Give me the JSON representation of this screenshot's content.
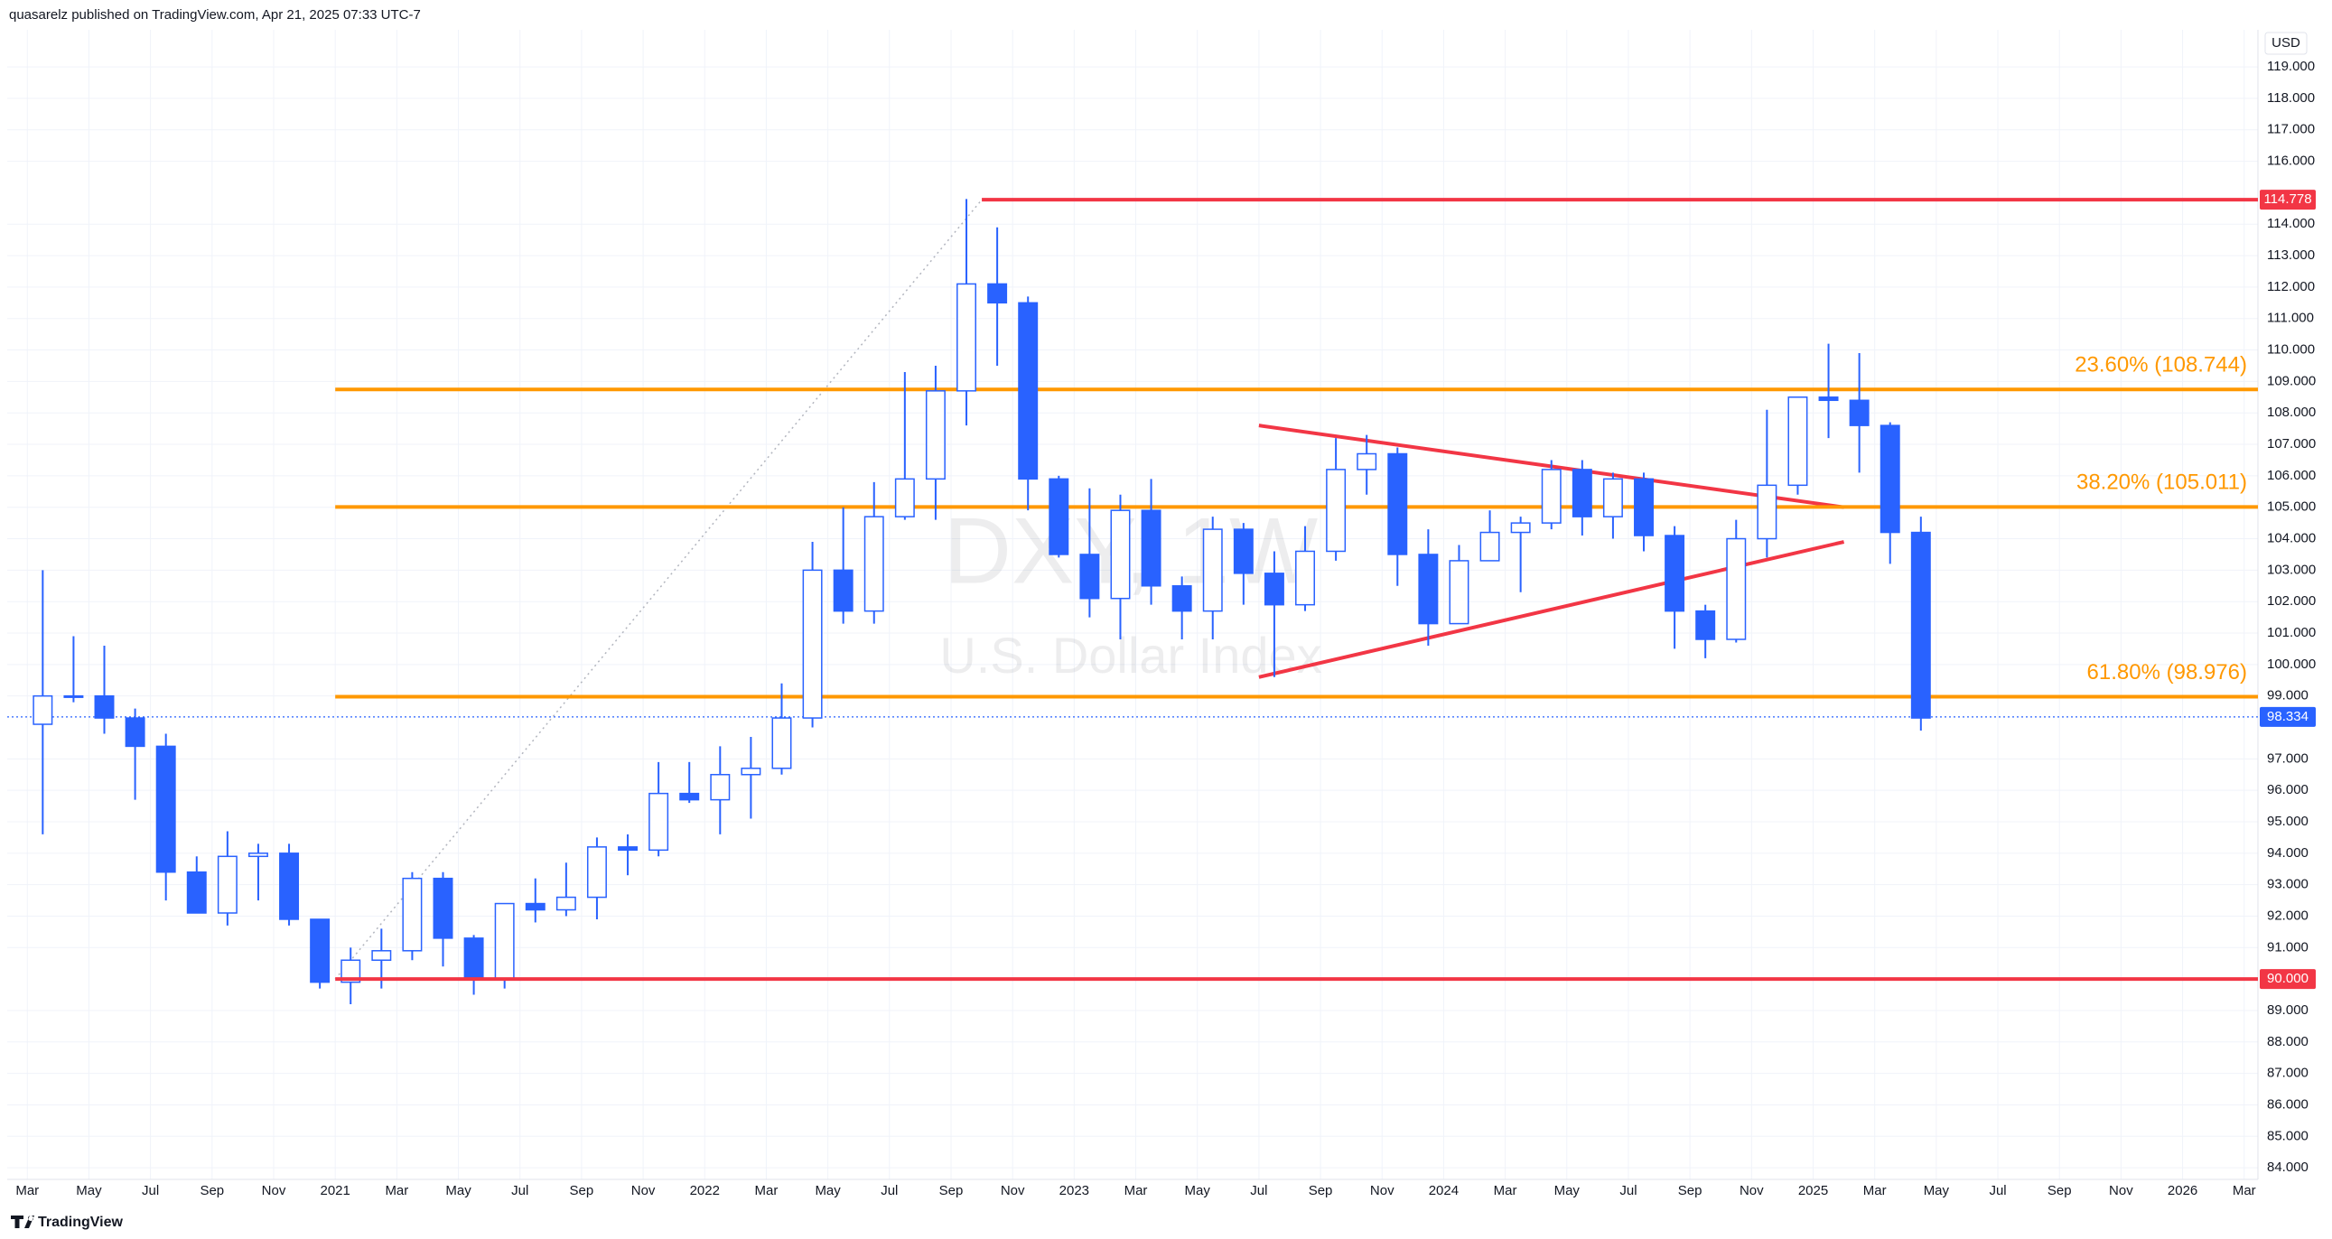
{
  "chart_data": {
    "type": "candlestick",
    "header": "quasarelz published on TradingView.com, Apr 21, 2025 07:33 UTC-7",
    "watermark_symbol": "DXY, 1W",
    "watermark_name": "U.S. Dollar Index",
    "currency": "USD",
    "footer": "TradingView",
    "up_color": "#ffffff",
    "down_color": "#2962ff",
    "border_color": "#2962ff",
    "grid": true,
    "x": [
      "2020-03",
      "2020-04",
      "2020-05",
      "2020-06",
      "2020-07",
      "2020-08",
      "2020-09",
      "2020-10",
      "2020-11",
      "2020-12",
      "2021-01",
      "2021-02",
      "2021-03",
      "2021-04",
      "2021-05",
      "2021-06",
      "2021-07",
      "2021-08",
      "2021-09",
      "2021-10",
      "2021-11",
      "2021-12",
      "2022-01",
      "2022-02",
      "2022-03",
      "2022-04",
      "2022-05",
      "2022-06",
      "2022-07",
      "2022-08",
      "2022-09",
      "2022-10",
      "2022-11",
      "2022-12",
      "2023-01",
      "2023-02",
      "2023-03",
      "2023-04",
      "2023-05",
      "2023-06",
      "2023-07",
      "2023-08",
      "2023-09",
      "2023-10",
      "2023-11",
      "2023-12",
      "2024-01",
      "2024-02",
      "2024-03",
      "2024-04",
      "2024-05",
      "2024-06",
      "2024-07",
      "2024-08",
      "2024-09",
      "2024-10",
      "2024-11",
      "2024-12",
      "2025-01",
      "2025-02",
      "2025-03",
      "2025-04"
    ],
    "open": [
      98.1,
      99.0,
      99.0,
      98.3,
      97.4,
      93.4,
      92.1,
      93.9,
      94.0,
      91.9,
      89.9,
      90.6,
      90.9,
      93.2,
      91.3,
      90.0,
      92.4,
      92.2,
      92.6,
      94.2,
      94.1,
      95.9,
      95.7,
      96.5,
      96.7,
      98.3,
      103.0,
      101.7,
      104.7,
      105.9,
      108.7,
      112.1,
      111.5,
      105.9,
      103.5,
      102.1,
      104.9,
      102.5,
      101.7,
      104.3,
      102.9,
      101.9,
      103.6,
      106.2,
      106.7,
      103.5,
      101.3,
      103.3,
      104.2,
      104.5,
      106.2,
      104.7,
      105.9,
      104.1,
      101.7,
      100.8,
      104.0,
      105.7,
      108.5,
      108.4,
      107.6,
      104.2
    ],
    "high": [
      103.0,
      100.9,
      100.6,
      98.6,
      97.8,
      93.9,
      94.7,
      94.3,
      94.3,
      91.9,
      91.0,
      91.6,
      93.4,
      93.4,
      91.4,
      92.4,
      93.2,
      93.7,
      94.5,
      94.6,
      96.9,
      96.9,
      97.4,
      97.7,
      99.4,
      103.9,
      105.0,
      105.8,
      109.3,
      109.5,
      114.8,
      113.9,
      111.7,
      106.0,
      105.6,
      105.4,
      105.9,
      102.8,
      104.7,
      104.5,
      103.6,
      104.4,
      107.2,
      107.3,
      106.9,
      104.3,
      103.8,
      104.9,
      104.7,
      106.5,
      106.5,
      106.1,
      106.1,
      104.4,
      101.9,
      104.6,
      108.1,
      108.5,
      110.2,
      109.9,
      107.7,
      104.7
    ],
    "low": [
      94.6,
      98.8,
      97.8,
      95.7,
      92.5,
      92.1,
      91.7,
      92.5,
      91.7,
      89.7,
      89.2,
      89.7,
      90.6,
      90.4,
      89.5,
      89.7,
      91.8,
      92.0,
      91.9,
      93.3,
      93.9,
      95.6,
      94.6,
      95.1,
      96.5,
      98.0,
      101.3,
      101.3,
      104.6,
      104.6,
      107.6,
      109.5,
      104.9,
      103.4,
      101.5,
      100.8,
      101.9,
      100.8,
      100.8,
      101.9,
      99.6,
      101.7,
      103.3,
      105.4,
      102.5,
      100.6,
      101.3,
      103.3,
      102.3,
      104.3,
      104.1,
      104.0,
      103.6,
      100.5,
      100.2,
      100.7,
      103.4,
      105.4,
      107.2,
      106.1,
      103.2,
      97.9
    ],
    "close": [
      99.0,
      99.0,
      98.3,
      97.4,
      93.4,
      92.1,
      93.9,
      94.0,
      91.9,
      89.9,
      90.6,
      90.9,
      93.2,
      91.3,
      90.0,
      92.4,
      92.2,
      92.6,
      94.2,
      94.1,
      95.9,
      95.7,
      96.5,
      96.7,
      98.3,
      103.0,
      101.7,
      104.7,
      105.9,
      108.7,
      112.1,
      111.5,
      105.9,
      103.5,
      102.1,
      104.9,
      102.5,
      101.7,
      104.3,
      102.9,
      101.9,
      103.6,
      106.2,
      106.7,
      103.5,
      101.3,
      103.3,
      104.2,
      104.5,
      106.2,
      104.7,
      105.9,
      104.1,
      101.7,
      100.8,
      104.0,
      105.7,
      108.5,
      108.4,
      107.6,
      104.2,
      98.3
    ],
    "ylim": [
      83.63,
      120.18
    ],
    "yticks": [
      {
        "value": 84,
        "label": "84.000"
      },
      {
        "value": 85,
        "label": "85.000"
      },
      {
        "value": 86,
        "label": "86.000"
      },
      {
        "value": 87,
        "label": "87.000"
      },
      {
        "value": 88,
        "label": "88.000"
      },
      {
        "value": 89,
        "label": "89.000"
      },
      {
        "value": 91,
        "label": "91.000"
      },
      {
        "value": 92,
        "label": "92.000"
      },
      {
        "value": 93,
        "label": "93.000"
      },
      {
        "value": 94,
        "label": "94.000"
      },
      {
        "value": 95,
        "label": "95.000"
      },
      {
        "value": 96,
        "label": "96.000"
      },
      {
        "value": 97,
        "label": "97.000"
      },
      {
        "value": 99,
        "label": "99.000"
      },
      {
        "value": 100,
        "label": "100.000"
      },
      {
        "value": 101,
        "label": "101.000"
      },
      {
        "value": 102,
        "label": "102.000"
      },
      {
        "value": 103,
        "label": "103.000"
      },
      {
        "value": 104,
        "label": "104.000"
      },
      {
        "value": 105,
        "label": "105.000"
      },
      {
        "value": 106,
        "label": "106.000"
      },
      {
        "value": 107,
        "label": "107.000"
      },
      {
        "value": 108,
        "label": "108.000"
      },
      {
        "value": 109,
        "label": "109.000"
      },
      {
        "value": 110,
        "label": "110.000"
      },
      {
        "value": 111,
        "label": "111.000"
      },
      {
        "value": 112,
        "label": "112.000"
      },
      {
        "value": 113,
        "label": "113.000"
      },
      {
        "value": 114,
        "label": "114.000"
      },
      {
        "value": 116,
        "label": "116.000"
      },
      {
        "value": 117,
        "label": "117.000"
      },
      {
        "value": 118,
        "label": "118.000"
      },
      {
        "value": 119,
        "label": "119.000"
      }
    ],
    "xticks": [
      {
        "value": "2020-03",
        "label": "Mar"
      },
      {
        "value": "2020-05",
        "label": "May"
      },
      {
        "value": "2020-07",
        "label": "Jul"
      },
      {
        "value": "2020-09",
        "label": "Sep"
      },
      {
        "value": "2020-11",
        "label": "Nov"
      },
      {
        "value": "2021-01",
        "label": "2021"
      },
      {
        "value": "2021-03",
        "label": "Mar"
      },
      {
        "value": "2021-05",
        "label": "May"
      },
      {
        "value": "2021-07",
        "label": "Jul"
      },
      {
        "value": "2021-09",
        "label": "Sep"
      },
      {
        "value": "2021-11",
        "label": "Nov"
      },
      {
        "value": "2022-01",
        "label": "2022"
      },
      {
        "value": "2022-03",
        "label": "Mar"
      },
      {
        "value": "2022-05",
        "label": "May"
      },
      {
        "value": "2022-07",
        "label": "Jul"
      },
      {
        "value": "2022-09",
        "label": "Sep"
      },
      {
        "value": "2022-11",
        "label": "Nov"
      },
      {
        "value": "2023-01",
        "label": "2023"
      },
      {
        "value": "2023-03",
        "label": "Mar"
      },
      {
        "value": "2023-05",
        "label": "May"
      },
      {
        "value": "2023-07",
        "label": "Jul"
      },
      {
        "value": "2023-09",
        "label": "Sep"
      },
      {
        "value": "2023-11",
        "label": "Nov"
      },
      {
        "value": "2024-01",
        "label": "2024"
      },
      {
        "value": "2024-03",
        "label": "Mar"
      },
      {
        "value": "2024-05",
        "label": "May"
      },
      {
        "value": "2024-07",
        "label": "Jul"
      },
      {
        "value": "2024-09",
        "label": "Sep"
      },
      {
        "value": "2024-11",
        "label": "Nov"
      },
      {
        "value": "2025-01",
        "label": "2025"
      },
      {
        "value": "2025-03",
        "label": "Mar"
      },
      {
        "value": "2025-05",
        "label": "May"
      },
      {
        "value": "2025-07",
        "label": "Jul"
      },
      {
        "value": "2025-09",
        "label": "Sep"
      },
      {
        "value": "2025-11",
        "label": "Nov"
      },
      {
        "value": "2026-01",
        "label": "2026"
      },
      {
        "value": "2026-03",
        "label": "Mar"
      }
    ],
    "levels": [
      {
        "value": 114.778,
        "from": "2022-10",
        "color": "#f23645"
      },
      {
        "value": 90,
        "label": "90.000",
        "from": "2021-01",
        "color": "#f23645"
      }
    ],
    "fib_levels": [
      {
        "value": 108.744,
        "label": "23.60% (108.744)",
        "from": "2021-01",
        "color": "#ff9800"
      },
      {
        "value": 105.011,
        "label": "38.20% (105.011)",
        "from": "2021-01",
        "color": "#ff9800"
      },
      {
        "value": 98.976,
        "label": "61.80% (98.976)",
        "from": "2021-01",
        "color": "#ff9800"
      }
    ],
    "last_price": {
      "value": 98.334,
      "color": "#2962ff"
    },
    "trendlines": [
      {
        "x": [
          "2023-07",
          "2025-02"
        ],
        "y": [
          107.6,
          105.0
        ],
        "color": "#f23645",
        "style": "solid"
      },
      {
        "x": [
          "2023-07",
          "2025-02"
        ],
        "y": [
          99.6,
          103.9
        ],
        "color": "#f23645",
        "style": "solid"
      },
      {
        "x": [
          "2021-01",
          "2022-10"
        ],
        "y": [
          90,
          114.778
        ],
        "color": "#b2b5be",
        "style": "dotted"
      }
    ]
  }
}
